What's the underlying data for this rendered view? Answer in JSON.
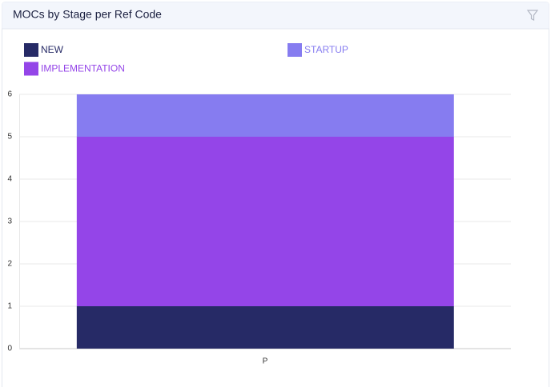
{
  "chart_data": {
    "type": "stacked-bar",
    "title": "MOCs by Stage per Ref Code",
    "categories": [
      "P"
    ],
    "series": [
      {
        "name": "NEW",
        "color": "#262a66",
        "values": [
          1
        ]
      },
      {
        "name": "IMPLEMENTATION",
        "color": "#9445e8",
        "values": [
          4
        ]
      },
      {
        "name": "STARTUP",
        "color": "#867cf0",
        "values": [
          1
        ]
      }
    ],
    "ylim": [
      0,
      6
    ],
    "yticks": [
      0,
      1,
      2,
      3,
      4,
      5,
      6
    ],
    "grid": true
  }
}
